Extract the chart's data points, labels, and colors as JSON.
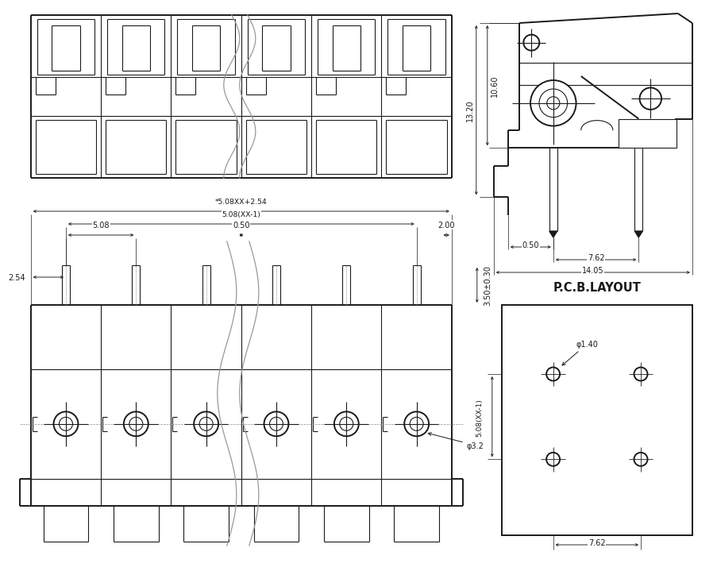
{
  "bg": "#ffffff",
  "lc": "#1a1a1a",
  "lw": 1.4,
  "tlw": 0.8,
  "dlw": 0.65,
  "fs": 7.0,
  "n_pins": 6,
  "dim_1320": "13.20",
  "dim_1060": "10.60",
  "dim_050": "0.50",
  "dim_762": "7.62",
  "dim_1405": "14.05",
  "dim_overall": "*5.08XX+2.54",
  "dim_pitch_n": "5.08(XX-1)",
  "dim_pitch": "5.08",
  "dim_050f": "0.50",
  "dim_200": "2.00",
  "dim_254": "2.54",
  "dim_350": "3.50±0.30",
  "dim_phi32": "φ3.2",
  "dim_phi140": "φ1.40",
  "dim_pitch_pcb": "5.08(XX-1)",
  "dim_762p": "7.62",
  "pcb_label": "P.C.B.LAYOUT"
}
